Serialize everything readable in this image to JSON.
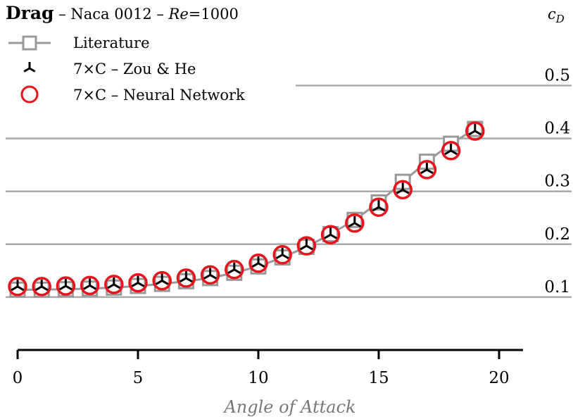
{
  "chart_data": {
    "type": "line",
    "title": {
      "bold": "Drag",
      "rest_prefix": " – Naca 0012 – ",
      "re_symbol": "Re",
      "re_value": "=1000"
    },
    "xlabel": "Angle of Attack",
    "ylabel": "c",
    "ylabel_sub": "D",
    "xlim": [
      -0.5,
      21
    ],
    "ylim": [
      0.0,
      0.56
    ],
    "x_ticks": [
      0,
      5,
      10,
      15,
      20
    ],
    "x_tick_labels": [
      "0",
      "5",
      "10",
      "15",
      "20"
    ],
    "y_ticks": [
      0.1,
      0.2,
      0.3,
      0.4,
      0.5
    ],
    "y_tick_labels": [
      "0.1",
      "0.2",
      "0.3",
      "0.4",
      "0.5"
    ],
    "grid": "horizontal",
    "y_axis_position": "right",
    "legend_position": "top-left",
    "colors": {
      "literature": "#999999",
      "zou_he": "#000000",
      "neural_network": "#e8141c",
      "grid": "#aaaaaa"
    },
    "series": [
      {
        "name": "Literature",
        "marker": "square",
        "x": [
          0,
          1,
          2,
          3,
          4,
          5,
          6,
          7,
          8,
          9,
          10,
          11,
          12,
          13,
          14,
          15,
          16,
          17,
          18,
          19
        ],
        "y": [
          0.114,
          0.114,
          0.115,
          0.116,
          0.118,
          0.121,
          0.125,
          0.13,
          0.136,
          0.146,
          0.158,
          0.175,
          0.195,
          0.219,
          0.246,
          0.279,
          0.318,
          0.356,
          0.39,
          0.418
        ]
      },
      {
        "name": "7×C – Zou & He",
        "marker": "tri-down",
        "x": [
          0,
          1,
          2,
          3,
          4,
          5,
          6,
          7,
          8,
          9,
          10,
          11,
          12,
          13,
          14,
          15,
          16,
          17,
          18,
          19
        ],
        "y": [
          0.12,
          0.12,
          0.121,
          0.122,
          0.124,
          0.127,
          0.131,
          0.136,
          0.142,
          0.152,
          0.164,
          0.18,
          0.197,
          0.218,
          0.24,
          0.27,
          0.303,
          0.341,
          0.377,
          0.414
        ]
      },
      {
        "name": "7×C – Neural Network",
        "marker": "circle",
        "x": [
          0,
          1,
          2,
          3,
          4,
          5,
          6,
          7,
          8,
          9,
          10,
          11,
          12,
          13,
          14,
          15,
          16,
          17,
          18,
          19
        ],
        "y": [
          0.12,
          0.12,
          0.121,
          0.122,
          0.124,
          0.127,
          0.131,
          0.136,
          0.142,
          0.152,
          0.164,
          0.18,
          0.197,
          0.218,
          0.24,
          0.27,
          0.303,
          0.341,
          0.377,
          0.414
        ]
      }
    ]
  }
}
